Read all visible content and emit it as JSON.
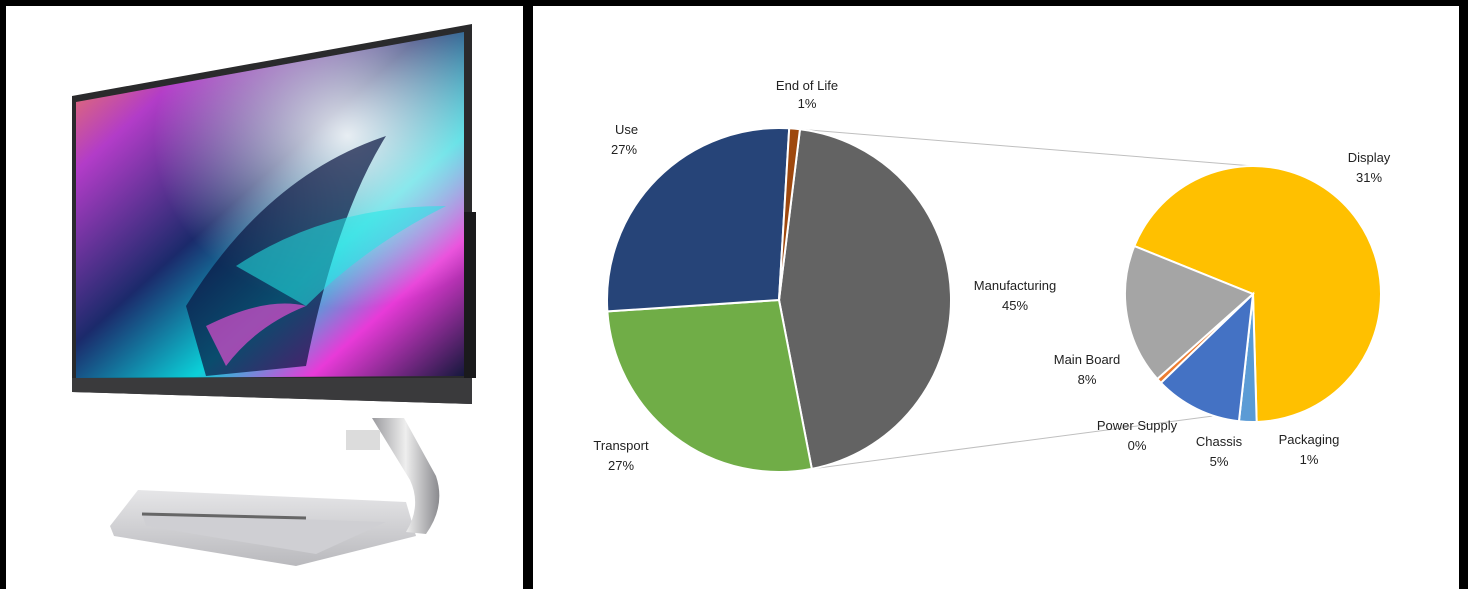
{
  "product": {
    "name": "all-in-one-desktop-monitor"
  },
  "chart_data": {
    "type": "pie",
    "title": "",
    "main": {
      "slices": [
        {
          "label": "Manufacturing",
          "pct_text": "45%",
          "value": 45,
          "color": "#636363"
        },
        {
          "label": "Transport",
          "pct_text": "27%",
          "value": 27,
          "color": "#70AD47"
        },
        {
          "label": "Use",
          "pct_text": "27%",
          "value": 27,
          "color": "#264478"
        },
        {
          "label": "End of Life",
          "pct_text": "1%",
          "value": 1,
          "color": "#9E480E"
        }
      ]
    },
    "breakdown": {
      "of": "Manufacturing",
      "slices": [
        {
          "label": "Display",
          "pct_text": "31%",
          "value": 31,
          "color": "#FFC000"
        },
        {
          "label": "Packaging",
          "pct_text": "1%",
          "value": 1,
          "color": "#5B9BD5"
        },
        {
          "label": "Chassis",
          "pct_text": "5%",
          "value": 5,
          "color": "#4472C4"
        },
        {
          "label": "Power Supply",
          "pct_text": "0%",
          "value": 0.3,
          "color": "#ED7D31"
        },
        {
          "label": "Main Board",
          "pct_text": "8%",
          "value": 8,
          "color": "#A5A5A5"
        }
      ]
    },
    "legend": "none"
  }
}
